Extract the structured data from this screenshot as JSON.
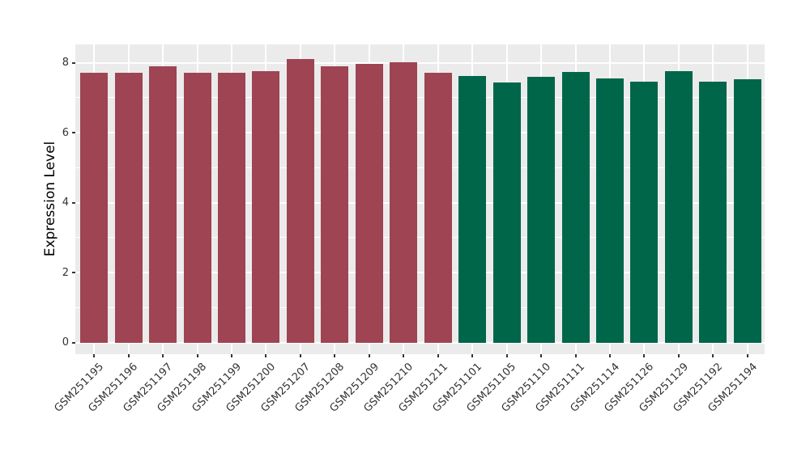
{
  "chart_data": {
    "type": "bar",
    "title": "",
    "xlabel": "",
    "ylabel": "Expression Level",
    "ylim": [
      -0.33,
      8.52
    ],
    "yticks": [
      0,
      2,
      4,
      6,
      8
    ],
    "yticks_minor": [
      1,
      3,
      5,
      7
    ],
    "grid": "on",
    "legend": "none",
    "plot_background": "#EBEBEB",
    "gridline_color": "#ffffff",
    "tick_label_color": "#333333",
    "categories": [
      "GSM251195",
      "GSM251196",
      "GSM251197",
      "GSM251198",
      "GSM251199",
      "GSM251200",
      "GSM251207",
      "GSM251208",
      "GSM251209",
      "GSM251210",
      "GSM251211",
      "GSM251101",
      "GSM251105",
      "GSM251110",
      "GSM251111",
      "GSM251114",
      "GSM251126",
      "GSM251129",
      "GSM251192",
      "GSM251194"
    ],
    "values": [
      7.71,
      7.72,
      7.89,
      7.72,
      7.71,
      7.75,
      8.11,
      7.9,
      7.97,
      8.01,
      7.72,
      7.63,
      7.43,
      7.59,
      7.73,
      7.55,
      7.46,
      7.76,
      7.46,
      7.53
    ],
    "groups": [
      "group1",
      "group1",
      "group1",
      "group1",
      "group1",
      "group1",
      "group1",
      "group1",
      "group1",
      "group1",
      "group1",
      "group2",
      "group2",
      "group2",
      "group2",
      "group2",
      "group2",
      "group2",
      "group2",
      "group2"
    ],
    "group_colors": {
      "group1": "#9E4452",
      "group2": "#00664A"
    }
  }
}
